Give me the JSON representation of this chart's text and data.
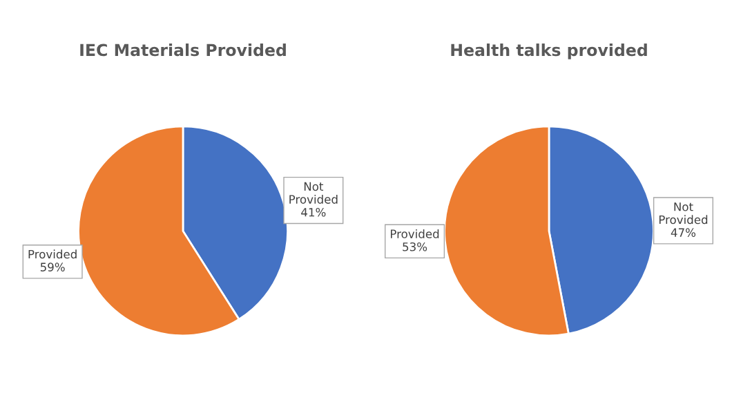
{
  "chart_data": [
    {
      "type": "pie",
      "title": "IEC Materials Provided",
      "categories": [
        "Not Provided",
        "Provided"
      ],
      "values": [
        41,
        59
      ],
      "colors": [
        "#4472c4",
        "#ed7d31"
      ],
      "value_labels": [
        "41%",
        "59%"
      ]
    },
    {
      "type": "pie",
      "title": "Health talks provided",
      "categories": [
        "Not Provided",
        "Provided"
      ],
      "values": [
        47,
        53
      ],
      "colors": [
        "#4472c4",
        "#ed7d31"
      ],
      "value_labels": [
        "47%",
        "53%"
      ]
    }
  ]
}
